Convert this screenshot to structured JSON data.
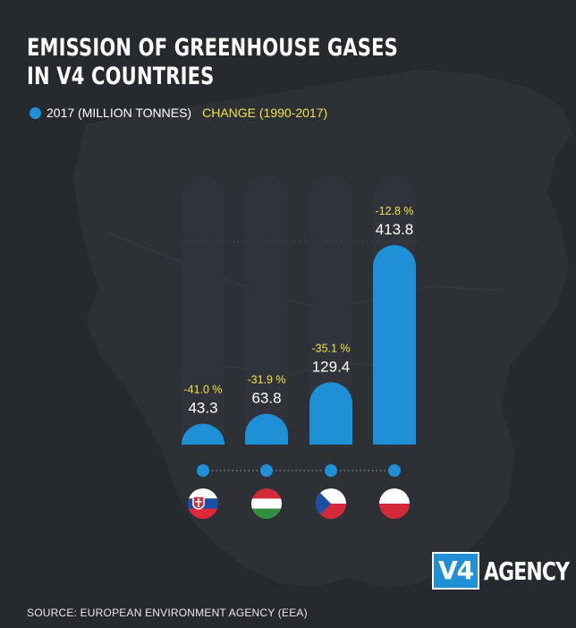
{
  "title_line1": "EMISSION OF GREENHOUSE GASES",
  "title_line2": "IN V4 COUNTRIES",
  "legend": {
    "series_label": "2017 (MILLION TONNES)",
    "change_label": "CHANGE (1990-2017)"
  },
  "colors": {
    "background": "#26292e",
    "bar": "#1f8fd6",
    "track": "#30343a",
    "change_text": "#f2e04a",
    "value_text": "#ffffff"
  },
  "chart_data": {
    "type": "bar",
    "categories": [
      "Slovakia",
      "Hungary",
      "Czech Republic",
      "Poland"
    ],
    "category_icons": [
      "slovakia-flag-icon",
      "hungary-flag-icon",
      "czech-flag-icon",
      "poland-flag-icon"
    ],
    "values": [
      43.3,
      63.8,
      129.4,
      413.8
    ],
    "value_labels": [
      "43.3",
      "63.8",
      "129.4",
      "413.8"
    ],
    "change_labels": [
      "-41.0 %",
      "-31.9 %",
      "-35.1 %",
      "-12.8 %"
    ],
    "title": "EMISSION OF GREENHOUSE GASES IN V4 COUNTRIES",
    "ylim": [
      0,
      413.8
    ],
    "grid": false,
    "legend_position": "top-left"
  },
  "source": "SOURCE: EUROPEAN ENVIRONMENT AGENCY (EEA)",
  "logo": {
    "box_text": "V4",
    "word_text": "AGENCY"
  }
}
